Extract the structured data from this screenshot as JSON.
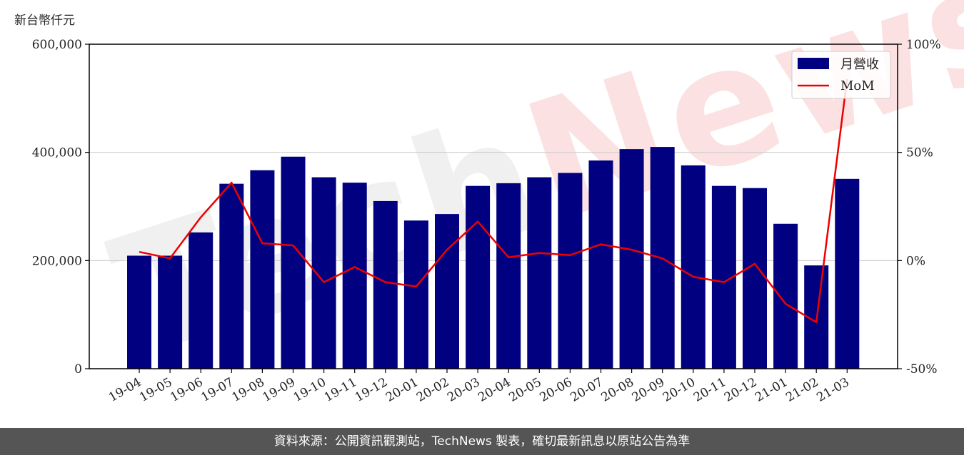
{
  "footer": {
    "text": "資料來源：公開資訊觀測站，TechNews 製表，確切最新訊息以原站公告為準"
  },
  "watermark": {
    "part1": "Tech",
    "part2": "News"
  },
  "chart_data": {
    "type": "bar+line",
    "ylabel_left": "新台幣仟元",
    "categories": [
      "19-04",
      "19-05",
      "19-06",
      "19-07",
      "19-08",
      "19-09",
      "19-10",
      "19-11",
      "19-12",
      "20-01",
      "20-02",
      "20-03",
      "20-04",
      "20-05",
      "20-06",
      "20-07",
      "20-08",
      "20-09",
      "20-10",
      "20-11",
      "20-12",
      "21-01",
      "21-02",
      "21-03"
    ],
    "series": [
      {
        "name": "月營收",
        "axis": "left",
        "kind": "bar",
        "color": "#000080",
        "values": [
          209000,
          209000,
          252000,
          342000,
          367000,
          392000,
          354000,
          344000,
          310000,
          274000,
          286000,
          338000,
          343000,
          354000,
          362000,
          385000,
          406000,
          410000,
          376000,
          338000,
          334000,
          268000,
          191000,
          351000
        ]
      },
      {
        "name": "MoM",
        "axis": "right",
        "kind": "line",
        "color": "#ee0000",
        "values": [
          4,
          1,
          20,
          36,
          8,
          7,
          -10,
          -3,
          -10,
          -12,
          5,
          18,
          1.5,
          3.5,
          2.5,
          7.5,
          5,
          1,
          -7.5,
          -10,
          -1.5,
          -20,
          -28.5,
          84
        ]
      }
    ],
    "ylim_left": [
      0,
      600000
    ],
    "yticks_left": [
      0,
      200000,
      400000,
      600000
    ],
    "ytick_labels_left": [
      "0",
      "200,000",
      "400,000",
      "600,000"
    ],
    "ylim_right": [
      -50,
      100
    ],
    "yticks_right": [
      -50,
      0,
      50,
      100
    ],
    "ytick_labels_right": [
      "-50%",
      "0%",
      "50%",
      "100%"
    ],
    "grid": "horizontal",
    "legend": "top-right"
  }
}
